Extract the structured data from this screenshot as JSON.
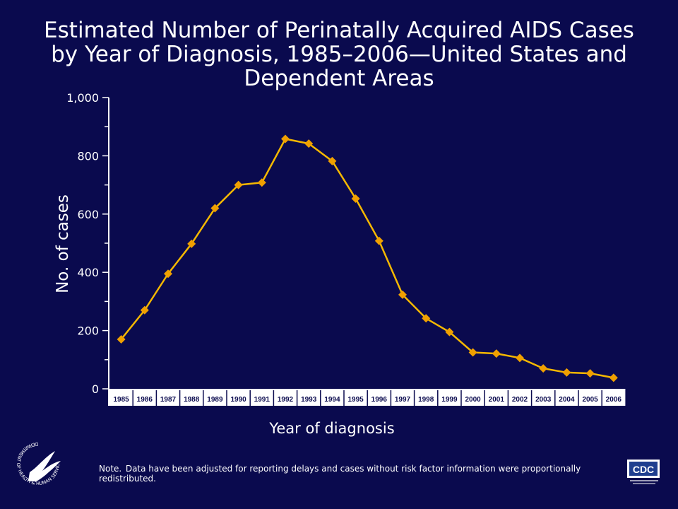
{
  "colors": {
    "background": "#0a0a4e",
    "line": "#f5b800",
    "marker": "#f0a000",
    "axis": "#ffffff"
  },
  "chart_data": {
    "type": "line",
    "title": "Estimated Number of Perinatally Acquired AIDS Cases by Year of Diagnosis, 1985–2006—United States and Dependent Areas",
    "title_lines": [
      "Estimated Number of Perinatally Acquired AIDS Cases",
      "by Year of Diagnosis, 1985–2006—United States and",
      "Dependent Areas"
    ],
    "xlabel": "Year of diagnosis",
    "ylabel": "No. of cases",
    "x": [
      "1985",
      "1986",
      "1987",
      "1988",
      "1989",
      "1990",
      "1991",
      "1992",
      "1993",
      "1994",
      "1995",
      "1996",
      "1997",
      "1998",
      "1999",
      "2000",
      "2001",
      "2002",
      "2003",
      "2004",
      "2005",
      "2006"
    ],
    "values": [
      170,
      270,
      395,
      498,
      620,
      700,
      708,
      858,
      842,
      782,
      653,
      508,
      323,
      242,
      195,
      125,
      121,
      106,
      70,
      56,
      53,
      38
    ],
    "ylim": [
      0,
      1000
    ],
    "yticks": [
      0,
      200,
      400,
      600,
      800,
      1000
    ],
    "ytick_labels": [
      "0",
      "200",
      "400",
      "600",
      "800",
      "1,000"
    ],
    "grid": false,
    "marker": "diamond"
  },
  "note": {
    "label": "Note.",
    "text": "Data have been adjusted for reporting delays and cases without risk factor information were proportionally redistributed."
  },
  "logos": {
    "hhs_text": "DEPARTMENT OF HEALTH & HUMAN SERVICES • USA",
    "cdc_text": "CDC"
  }
}
